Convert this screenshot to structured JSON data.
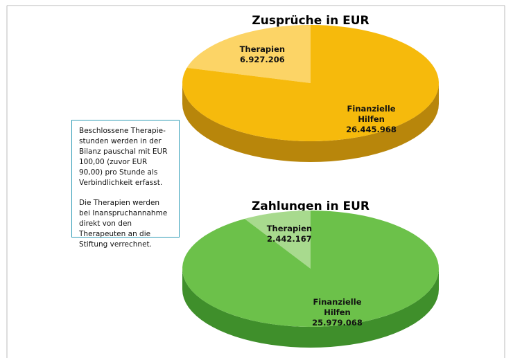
{
  "chart_data": [
    {
      "type": "pie",
      "title": "Zusprüche in EUR",
      "categories": [
        "Therapien",
        "Finanzielle Hilfen"
      ],
      "values": [
        6927206,
        26445968
      ],
      "value_labels": [
        "6.927.206",
        "26.445.968"
      ],
      "colors": [
        "#fcd466",
        "#f6ba0c"
      ],
      "side_colors": [
        "#c9a13a",
        "#b8860b"
      ]
    },
    {
      "type": "pie",
      "title": "Zahlungen in EUR",
      "categories": [
        "Therapien",
        "Finanzielle Hilfen"
      ],
      "values": [
        2442167,
        25979068
      ],
      "value_labels": [
        "2.442.167",
        "25.979.068"
      ],
      "colors": [
        "#a8da8e",
        "#6cc14a"
      ],
      "side_colors": [
        "#6fa65a",
        "#3f8f2b"
      ]
    }
  ],
  "note": {
    "paragraphs": [
      "Beschlossene Therapie-stunden werden in der Bilanz pauschal mit EUR 100,00 (zuvor EUR 90,00) pro Stunde als Verbindlichkeit erfasst.",
      "Die Therapien werden bei Inanspruchannahme direkt von den Therapeuten an die Stiftung verrechnet."
    ]
  }
}
